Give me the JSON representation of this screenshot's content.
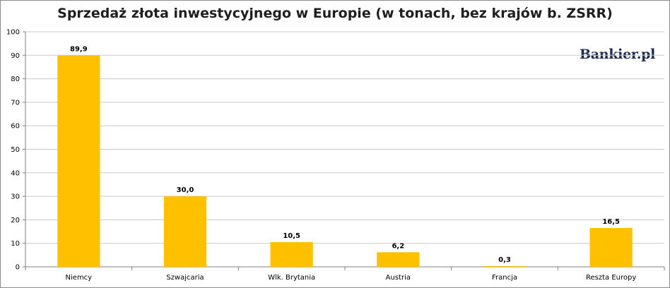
{
  "logo": "Bankier.pl",
  "chart_data": {
    "type": "bar",
    "title": "Sprzedaż złota inwestycyjnego w Europie (w tonach, bez krajów b. ZSRR)",
    "categories": [
      "Niemcy",
      "Szwajcaria",
      "Wlk. Brytania",
      "Austria",
      "Francja",
      "Reszta Europy"
    ],
    "values": [
      89.9,
      30.0,
      10.5,
      6.2,
      0.3,
      16.5
    ],
    "data_labels": [
      "89,9",
      "30,0",
      "10,5",
      "6,2",
      "0,3",
      "16,5"
    ],
    "yticks": [
      "0",
      "10",
      "20",
      "30",
      "40",
      "50",
      "60",
      "70",
      "80",
      "90",
      "100"
    ],
    "ylim": [
      0,
      100
    ],
    "xlabel": "",
    "ylabel": "",
    "grid": true,
    "legend": "none",
    "colors": {
      "bar": "#FFC000",
      "grid": "#c8c8c8",
      "axis": "#7f7f7f"
    }
  }
}
